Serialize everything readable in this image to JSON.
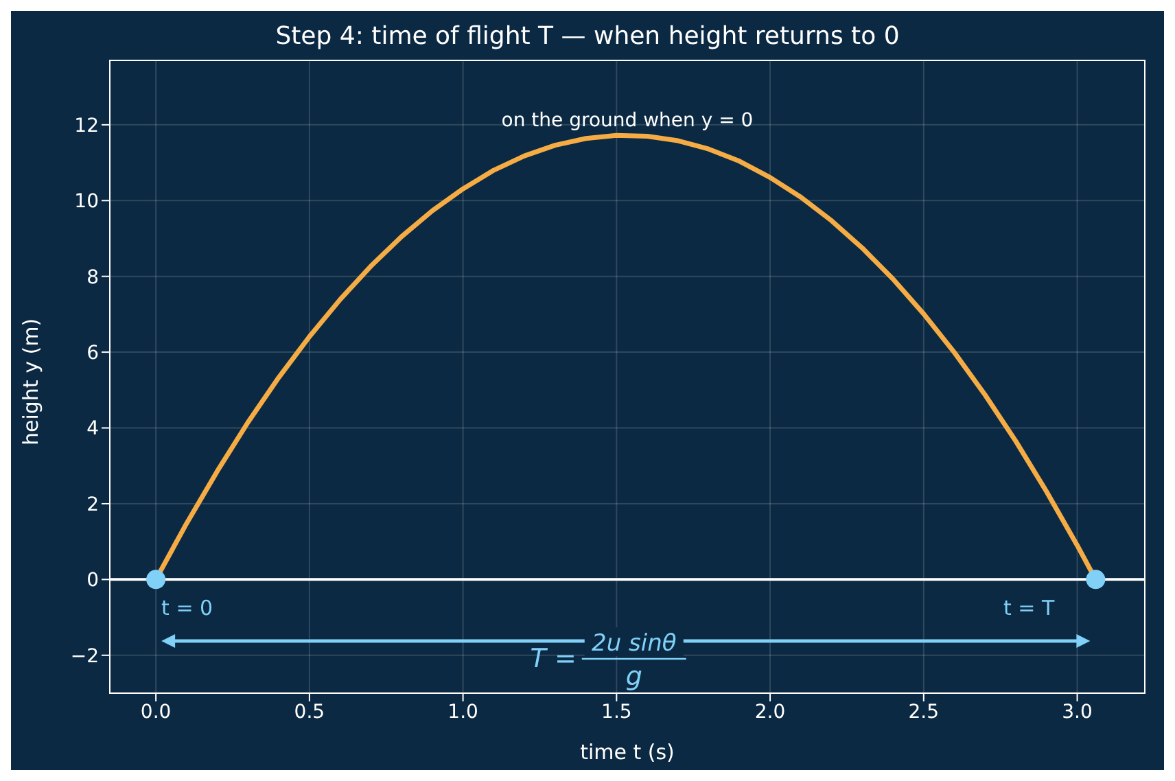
{
  "chart_data": {
    "type": "line",
    "title": "Step 4: time of flight T — when height returns to 0",
    "xlabel": "time t (s)",
    "ylabel": "height y (m)",
    "xlim": [
      -0.15,
      3.22
    ],
    "ylim": [
      -3,
      13.7
    ],
    "xticks": [
      {
        "value": 0,
        "label": "0.0"
      },
      0.5,
      {
        "value": 1,
        "label": "1.0"
      },
      1.5,
      {
        "value": 2,
        "label": "2.0"
      },
      2.5,
      {
        "value": 3,
        "label": "3.0"
      }
    ],
    "yticks": [
      {
        "value": -2,
        "label": "−2"
      },
      0,
      2,
      4,
      6,
      8,
      10,
      12
    ],
    "grid": true,
    "legend": false,
    "line_style": "solid",
    "ref_lines": [
      {
        "axis": "y",
        "value": 0,
        "color": "#ffffff"
      }
    ],
    "series": [
      {
        "color": "#f5ac45",
        "x": [
          0,
          0.1,
          0.2,
          0.3,
          0.4,
          0.5,
          0.6,
          0.7,
          0.8,
          0.9,
          1.0,
          1.1,
          1.2,
          1.3,
          1.4,
          1.5,
          1.6,
          1.7,
          1.8,
          1.9,
          2.0,
          2.1,
          2.2,
          2.3,
          2.4,
          2.5,
          2.6,
          2.7,
          2.8,
          2.9,
          3.0,
          3.06
        ],
        "values": [
          0,
          1.48,
          2.86,
          4.15,
          5.33,
          6.41,
          7.39,
          8.27,
          9.05,
          9.73,
          10.31,
          10.8,
          11.18,
          11.46,
          11.64,
          11.72,
          11.7,
          11.58,
          11.36,
          11.04,
          10.61,
          10.09,
          9.47,
          8.75,
          7.93,
          7.01,
          5.99,
          4.87,
          3.65,
          2.32,
          0.9,
          0
        ]
      },
      {
        "type": "scatter",
        "color": "#80d0f8",
        "marker": "circle",
        "x": [
          0,
          3.06
        ],
        "values": [
          0,
          0
        ]
      }
    ],
    "annotations": [
      "on the ground when y = 0",
      {
        "text": "t = 0",
        "x": 0,
        "y": 0
      },
      {
        "text": "t = T",
        "x": 3.06,
        "y": 0
      },
      "T =",
      "2u sinθ",
      "g"
    ]
  }
}
